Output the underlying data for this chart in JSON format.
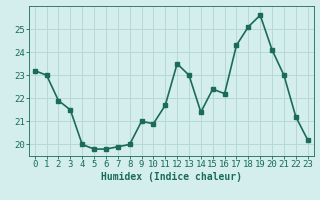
{
  "x": [
    0,
    1,
    2,
    3,
    4,
    5,
    6,
    7,
    8,
    9,
    10,
    11,
    12,
    13,
    14,
    15,
    16,
    17,
    18,
    19,
    20,
    21,
    22,
    23
  ],
  "y": [
    23.2,
    23.0,
    21.9,
    21.5,
    20.0,
    19.8,
    19.8,
    19.9,
    20.0,
    21.0,
    20.9,
    21.7,
    23.5,
    23.0,
    21.4,
    22.4,
    22.2,
    24.3,
    25.1,
    25.6,
    24.1,
    23.0,
    21.2,
    20.2
  ],
  "line_color": "#1a6b5a",
  "marker": "s",
  "marker_size": 2.5,
  "bg_color": "#d4eeed",
  "grid_color": "#b8d8d5",
  "xlabel": "Humidex (Indice chaleur)",
  "ylim": [
    19.5,
    26.0
  ],
  "xlim": [
    -0.5,
    23.5
  ],
  "yticks": [
    20,
    21,
    22,
    23,
    24,
    25
  ],
  "xtick_labels": [
    "0",
    "1",
    "2",
    "3",
    "4",
    "5",
    "6",
    "7",
    "8",
    "9",
    "10",
    "11",
    "12",
    "13",
    "14",
    "15",
    "16",
    "17",
    "18",
    "19",
    "20",
    "21",
    "22",
    "23"
  ],
  "xlabel_fontsize": 7,
  "tick_fontsize": 6.5,
  "line_width": 1.2
}
